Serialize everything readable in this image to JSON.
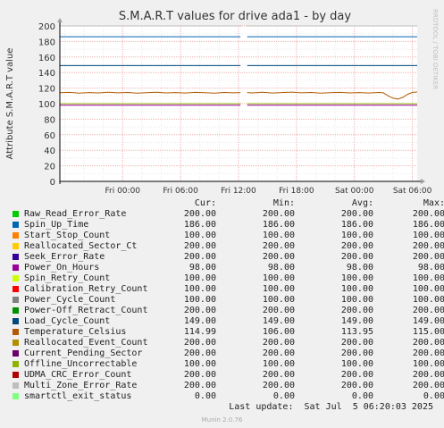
{
  "chart_data": {
    "type": "line",
    "title": "S.M.A.R.T values for drive ada1 - by day",
    "ylabel": "Attribute S.M.A.R.T value",
    "watermark": "RRDTOOL / TOBI OETIKER",
    "ylim": [
      0,
      200
    ],
    "y_ticks": [
      "0",
      "20",
      "40",
      "60",
      "80",
      "100",
      "120",
      "140",
      "160",
      "180",
      "200"
    ],
    "x_ticks": [
      "Fri 00:00",
      "Fri 06:00",
      "Fri 12:00",
      "Fri 18:00",
      "Sat 00:00",
      "Sat 06:00"
    ],
    "x_tick_hours": [
      0,
      6,
      12,
      18,
      24,
      30
    ],
    "x_range_hours": [
      -6.5,
      30.5
    ],
    "data_gap_hours": [
      12.2,
      12.9
    ],
    "grid": true,
    "columns": [
      "Cur:",
      "Min:",
      "Avg:",
      "Max:"
    ],
    "series": [
      {
        "name": "Raw_Read_Error_Rate",
        "color": "#00cc00",
        "cur": "200.00",
        "min": "200.00",
        "avg": "200.00",
        "max": "200.00",
        "value": 200
      },
      {
        "name": "Spin_Up_Time",
        "color": "#0066b3",
        "cur": "186.00",
        "min": "186.00",
        "avg": "186.00",
        "max": "186.00",
        "value": 186
      },
      {
        "name": "Start_Stop_Count",
        "color": "#ff8000",
        "cur": "100.00",
        "min": "100.00",
        "avg": "100.00",
        "max": "100.00",
        "value": 100
      },
      {
        "name": "Reallocated_Sector_Ct",
        "color": "#ffcc00",
        "cur": "200.00",
        "min": "200.00",
        "avg": "200.00",
        "max": "200.00",
        "value": 200
      },
      {
        "name": "Seek_Error_Rate",
        "color": "#330099",
        "cur": "200.00",
        "min": "200.00",
        "avg": "200.00",
        "max": "200.00",
        "value": 200
      },
      {
        "name": "Power_On_Hours",
        "color": "#990099",
        "cur": "98.00",
        "min": "98.00",
        "avg": "98.00",
        "max": "98.00",
        "value": 98
      },
      {
        "name": "Spin_Retry_Count",
        "color": "#ccff00",
        "cur": "100.00",
        "min": "100.00",
        "avg": "100.00",
        "max": "100.00",
        "value": 100
      },
      {
        "name": "Calibration_Retry_Count",
        "color": "#ff0000",
        "cur": "100.00",
        "min": "100.00",
        "avg": "100.00",
        "max": "100.00",
        "value": 100
      },
      {
        "name": "Power_Cycle_Count",
        "color": "#808080",
        "cur": "100.00",
        "min": "100.00",
        "avg": "100.00",
        "max": "100.00",
        "value": 100
      },
      {
        "name": "Power-Off_Retract_Count",
        "color": "#008f00",
        "cur": "200.00",
        "min": "200.00",
        "avg": "200.00",
        "max": "200.00",
        "value": 200
      },
      {
        "name": "Load_Cycle_Count",
        "color": "#00487d",
        "cur": "149.00",
        "min": "149.00",
        "avg": "149.00",
        "max": "149.00",
        "value": 149
      },
      {
        "name": "Temperature_Celsius",
        "color": "#b35a00",
        "cur": "114.99",
        "min": "106.00",
        "avg": "113.95",
        "max": "115.00",
        "value": 114
      },
      {
        "name": "Reallocated_Event_Count",
        "color": "#b38f00",
        "cur": "200.00",
        "min": "200.00",
        "avg": "200.00",
        "max": "200.00",
        "value": 200
      },
      {
        "name": "Current_Pending_Sector",
        "color": "#6b006b",
        "cur": "200.00",
        "min": "200.00",
        "avg": "200.00",
        "max": "200.00",
        "value": 200
      },
      {
        "name": "Offline_Uncorrectable",
        "color": "#8fb300",
        "cur": "100.00",
        "min": "100.00",
        "avg": "100.00",
        "max": "100.00",
        "value": 100
      },
      {
        "name": "UDMA_CRC_Error_Count",
        "color": "#b30000",
        "cur": "200.00",
        "min": "200.00",
        "avg": "200.00",
        "max": "200.00",
        "value": 200
      },
      {
        "name": "Multi_Zone_Error_Rate",
        "color": "#bebebe",
        "cur": "200.00",
        "min": "200.00",
        "avg": "200.00",
        "max": "200.00",
        "value": 200
      },
      {
        "name": "smartctl_exit_status",
        "color": "#80ff80",
        "cur": "0.00",
        "min": "0.00",
        "avg": "0.00",
        "max": "0.00",
        "value": 0
      }
    ],
    "temperature_profile": [
      [
        -6.5,
        114
      ],
      [
        -5.5,
        114.5
      ],
      [
        -4.5,
        113.5
      ],
      [
        -3.5,
        114.2
      ],
      [
        -2.5,
        113.8
      ],
      [
        -1.5,
        114.6
      ],
      [
        -0.5,
        113.9
      ],
      [
        0.5,
        114.4
      ],
      [
        1.5,
        113.6
      ],
      [
        2.5,
        114.1
      ],
      [
        3.5,
        114.7
      ],
      [
        4.5,
        113.8
      ],
      [
        5.5,
        114.3
      ],
      [
        6.5,
        113.7
      ],
      [
        7.5,
        114.5
      ],
      [
        8.5,
        114.0
      ],
      [
        9.5,
        113.6
      ],
      [
        10.5,
        114.4
      ],
      [
        11.5,
        113.9
      ],
      [
        12.2,
        114.2
      ],
      [
        12.9,
        114.3
      ],
      [
        13.5,
        113.8
      ],
      [
        14.5,
        114.6
      ],
      [
        15.5,
        113.7
      ],
      [
        16.5,
        114.2
      ],
      [
        17.5,
        114.8
      ],
      [
        18.5,
        113.9
      ],
      [
        19.5,
        114.4
      ],
      [
        20.5,
        113.6
      ],
      [
        21.5,
        114.1
      ],
      [
        22.5,
        114.5
      ],
      [
        23.5,
        113.8
      ],
      [
        24.5,
        114.3
      ],
      [
        25.5,
        113.7
      ],
      [
        26.5,
        114.4
      ],
      [
        27.0,
        113.9
      ],
      [
        27.5,
        110.0
      ],
      [
        28.0,
        107.0
      ],
      [
        28.5,
        106.0
      ],
      [
        29.0,
        108.0
      ],
      [
        29.5,
        112.0
      ],
      [
        30.0,
        114.5
      ],
      [
        30.5,
        115.0
      ]
    ]
  },
  "footer": {
    "last_update": "Last update:  Sat Jul  5 06:20:03 2025",
    "generator": "Munin 2.0.76"
  }
}
